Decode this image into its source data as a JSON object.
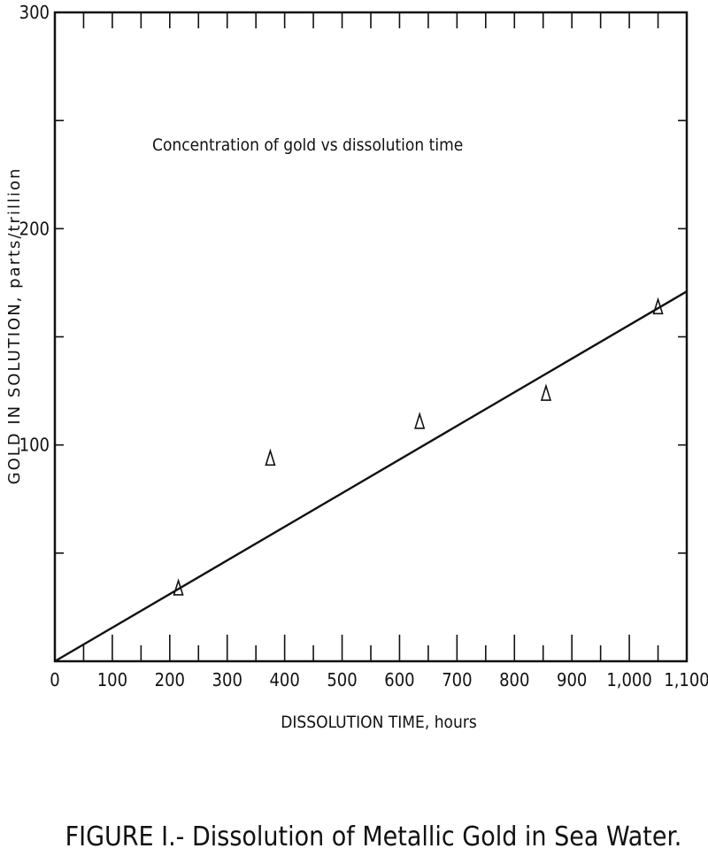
{
  "chart_data": {
    "type": "scatter",
    "annotation": "Concentration of gold vs dissolution time",
    "xlabel": "DISSOLUTION TIME, hours",
    "ylabel": "GOLD IN SOLUTION, parts/trillion",
    "caption": "FIGURE I.- Dissolution of Metallic Gold in Sea Water.",
    "xlim": [
      0,
      1100
    ],
    "ylim": [
      0,
      300
    ],
    "x_ticks": [
      0,
      100,
      200,
      300,
      400,
      500,
      600,
      700,
      800,
      900,
      1000,
      1100
    ],
    "x_tick_labels": [
      "0",
      "100",
      "200",
      "300",
      "400",
      "500",
      "600",
      "700",
      "800",
      "900",
      "1,000",
      "1,100"
    ],
    "y_ticks": [
      100,
      200,
      300
    ],
    "y_tick_labels": [
      "100",
      "200",
      "300"
    ],
    "marker": "triangle",
    "series": [
      {
        "x": [
          215,
          375,
          635,
          855,
          1050
        ],
        "y": [
          34,
          94,
          111,
          124,
          164
        ]
      }
    ],
    "fit_line": {
      "x": [
        0,
        1100
      ],
      "y": [
        0,
        171
      ]
    },
    "grid": false
  }
}
